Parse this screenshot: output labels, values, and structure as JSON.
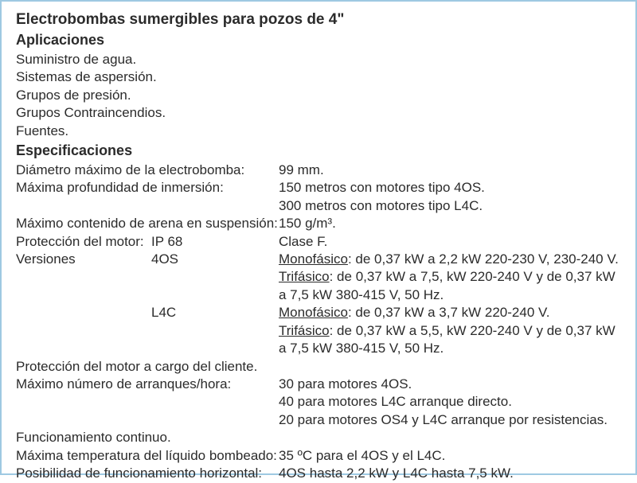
{
  "colors": {
    "border": "#9ec9e2",
    "text": "#2b2b2b",
    "background": "#ffffff"
  },
  "typography": {
    "title_fontsize": 19,
    "heading_fontsize": 18,
    "body_fontsize": 17,
    "font_family": "Arial, Helvetica, sans-serif"
  },
  "title": "Electrobombas sumergibles para pozos de 4\"",
  "applications": {
    "heading": "Aplicaciones",
    "items": [
      "Suministro de agua.",
      "Sistemas de aspersión.",
      "Grupos de presión.",
      "Grupos Contraincendios.",
      "Fuentes."
    ]
  },
  "specifications": {
    "heading": "Especificaciones",
    "diameter": {
      "label": "Diámetro máximo de la electrobomba:",
      "value": "99 mm."
    },
    "depth": {
      "label": "Máxima profundidad de inmersión:",
      "value1": "150 metros con motores tipo 4OS.",
      "value2": "300 metros con motores tipo L4C."
    },
    "sand": {
      "label": "Máximo contenido de arena en suspensión:",
      "value": "150 g/m³."
    },
    "protection": {
      "label": "Protección del motor:",
      "code": "IP 68",
      "value": "Clase F."
    },
    "versions": {
      "label": "Versiones",
      "v4os": {
        "code": "4OS",
        "mono_label": "Monofásico",
        "mono_rest": ": de 0,37 kW a 2,2 kW 220-230 V, 230-240 V.",
        "tri_label": "Trifásico",
        "tri_rest1": ": de 0,37 kW a 7,5, kW 220-240 V  y de 0,37 kW",
        "tri_rest2": "a 7,5  kW 380-415 V, 50 Hz."
      },
      "l4c": {
        "code": "L4C",
        "mono_label": "Monofásico",
        "mono_rest": ": de 0,37 kW a 3,7 kW 220-240 V.",
        "tri_label": "Trifásico",
        "tri_rest1": ": de 0,37 kW a 5,5, kW 220-240 V  y de 0,37 kW",
        "tri_rest2": "a 7,5 kW  380-415 V, 50 Hz."
      }
    },
    "client_protection": "Protección del motor a cargo del cliente.",
    "starts": {
      "label": "Máximo número de arranques/hora:",
      "v1": "30 para motores 4OS.",
      "v2": "40 para motores L4C arranque directo.",
      "v3": "20 para motores OS4 y L4C arranque por resistencias."
    },
    "continuous": "Funcionamiento continuo.",
    "temp": {
      "label": "Máxima temperatura del líquido bombeado:",
      "value": "35 ºC para el 4OS y el L4C."
    },
    "horizontal": {
      "label": "Posibilidad de funcionamiento horizontal:",
      "value": "4OS hasta 2,2 kW y L4C hasta 7,5 kW."
    }
  }
}
